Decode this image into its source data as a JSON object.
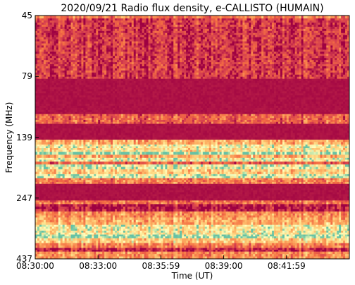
{
  "chart_data": {
    "type": "heatmap",
    "title": "2020/09/21  Radio flux density, e-CALLISTO (HUMAIN)",
    "xlabel": "Time (UT)",
    "ylabel": "Frequency (MHz)",
    "x_ticks": [
      "08:30:00",
      "08:33:00",
      "08:35:59",
      "08:39:00",
      "08:41:59"
    ],
    "y_ticks": [
      "45",
      "79",
      "139",
      "247",
      "437"
    ],
    "xlim": [
      "08:30:00",
      "08:45:00"
    ],
    "ylim": [
      45,
      437
    ],
    "colormap": "Spectral_r",
    "colors": {
      "background": "#99004d",
      "low": "#9e0142",
      "mid": "#f46d43",
      "high": "#fee08b",
      "peak": "#66c2a5"
    },
    "rows": [
      {
        "from": 0.0,
        "to": 0.012,
        "level": 0.4
      },
      {
        "from": 0.012,
        "to": 0.26,
        "level": 0.16
      },
      {
        "from": 0.26,
        "to": 0.405,
        "level": 0.02
      },
      {
        "from": 0.405,
        "to": 0.445,
        "level": 0.3
      },
      {
        "from": 0.445,
        "to": 0.51,
        "level": 0.02
      },
      {
        "from": 0.51,
        "to": 0.53,
        "level": 0.55
      },
      {
        "from": 0.53,
        "to": 0.545,
        "level": 0.8
      },
      {
        "from": 0.545,
        "to": 0.56,
        "level": 0.72
      },
      {
        "from": 0.56,
        "to": 0.572,
        "level": 0.97
      },
      {
        "from": 0.572,
        "to": 0.585,
        "level": 0.55
      },
      {
        "from": 0.585,
        "to": 0.6,
        "level": 0.8
      },
      {
        "from": 0.6,
        "to": 0.612,
        "level": 0.3
      },
      {
        "from": 0.612,
        "to": 0.632,
        "level": 0.85
      },
      {
        "from": 0.632,
        "to": 0.652,
        "level": 0.65
      },
      {
        "from": 0.652,
        "to": 0.668,
        "level": 0.88
      },
      {
        "from": 0.668,
        "to": 0.692,
        "level": 0.4
      },
      {
        "from": 0.692,
        "to": 0.76,
        "level": 0.02
      },
      {
        "from": 0.76,
        "to": 0.775,
        "level": 0.35
      },
      {
        "from": 0.775,
        "to": 0.805,
        "level": 0.06
      },
      {
        "from": 0.805,
        "to": 0.83,
        "level": 0.45
      },
      {
        "from": 0.83,
        "to": 0.86,
        "level": 0.55
      },
      {
        "from": 0.86,
        "to": 0.9,
        "level": 0.78
      },
      {
        "from": 0.9,
        "to": 0.915,
        "level": 0.95
      },
      {
        "from": 0.915,
        "to": 0.935,
        "level": 0.65
      },
      {
        "from": 0.935,
        "to": 0.955,
        "level": 0.4
      },
      {
        "from": 0.955,
        "to": 0.97,
        "level": 0.1
      },
      {
        "from": 0.97,
        "to": 1.0,
        "level": 0.45
      }
    ]
  }
}
